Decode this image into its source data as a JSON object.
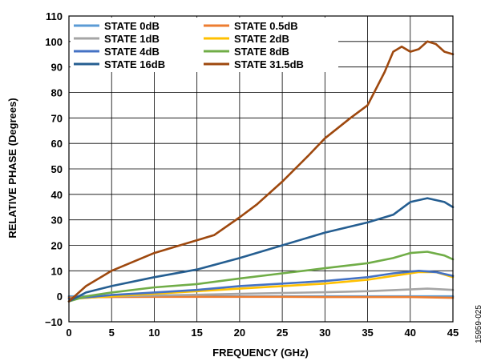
{
  "chart_data": {
    "type": "line",
    "xlabel": "FREQUENCY (GHz)",
    "ylabel": "RELATIVE PHASE (Degrees)",
    "xlim": [
      0,
      45
    ],
    "ylim": [
      -10,
      110
    ],
    "xticks": [
      "0",
      "5",
      "10",
      "15",
      "20",
      "25",
      "30",
      "35",
      "40",
      "45"
    ],
    "yticks": [
      "−10",
      "0",
      "10",
      "20",
      "30",
      "40",
      "50",
      "60",
      "70",
      "80",
      "90",
      "100",
      "110"
    ],
    "grid": true,
    "legend_position": "top-left",
    "figure_id": "15959-025",
    "series": [
      {
        "name": "STATE 0dB",
        "color": "#5b9bd5",
        "x": [
          0,
          10,
          20,
          30,
          40,
          45
        ],
        "y": [
          0,
          0,
          0,
          0,
          0,
          0
        ]
      },
      {
        "name": "STATE 0.5dB",
        "color": "#ed7d31",
        "x": [
          0,
          5,
          10,
          15,
          20,
          25,
          30,
          35,
          40,
          45
        ],
        "y": [
          -0.5,
          -0.3,
          -0.2,
          -0.2,
          -0.2,
          -0.2,
          -0.3,
          -0.3,
          -0.3,
          -0.6
        ]
      },
      {
        "name": "STATE 1dB",
        "color": "#a5a5a5",
        "x": [
          0,
          5,
          10,
          15,
          20,
          25,
          30,
          35,
          40,
          42,
          45
        ],
        "y": [
          -1,
          0,
          0.3,
          0.6,
          1,
          1.3,
          1.6,
          2,
          2.7,
          3,
          2.5
        ]
      },
      {
        "name": "STATE 2dB",
        "color": "#ffc000",
        "x": [
          0,
          5,
          10,
          15,
          20,
          25,
          30,
          35,
          38,
          41,
          43,
          45
        ],
        "y": [
          -1,
          0,
          1,
          2,
          3,
          4,
          5,
          6.5,
          8,
          9.5,
          9.5,
          7.5
        ]
      },
      {
        "name": "STATE 4dB",
        "color": "#4472c4",
        "x": [
          0,
          5,
          10,
          15,
          20,
          25,
          30,
          35,
          38,
          41,
          43,
          45
        ],
        "y": [
          -1,
          0.5,
          1.5,
          2.5,
          4,
          5,
          6,
          7.5,
          9,
          10,
          9.5,
          8
        ]
      },
      {
        "name": "STATE 8dB",
        "color": "#70ad47",
        "x": [
          0,
          2,
          5,
          10,
          15,
          20,
          25,
          30,
          35,
          38,
          40,
          42,
          44,
          45
        ],
        "y": [
          -2,
          0,
          1.5,
          3.5,
          4.8,
          7,
          9,
          11,
          13,
          15,
          17,
          17.5,
          16,
          14.5
        ]
      },
      {
        "name": "STATE 16dB",
        "color": "#255e91",
        "x": [
          0,
          2,
          5,
          10,
          15,
          20,
          25,
          30,
          35,
          38,
          40,
          42,
          44,
          45
        ],
        "y": [
          -2,
          1.5,
          4,
          7.5,
          10.5,
          15,
          20,
          25,
          29,
          32,
          37,
          38.5,
          37,
          35
        ]
      },
      {
        "name": "STATE 31.5dB",
        "color": "#9e480e",
        "x": [
          0,
          2,
          5,
          10,
          15,
          17,
          20,
          22,
          25,
          28,
          30,
          33,
          35,
          37,
          38,
          39,
          40,
          41,
          42,
          43,
          44,
          45
        ],
        "y": [
          -2,
          4,
          10,
          17,
          22,
          24,
          31,
          36,
          45,
          55,
          62,
          70,
          75,
          88,
          96,
          98,
          96,
          97,
          100,
          99,
          96,
          95
        ]
      }
    ]
  }
}
